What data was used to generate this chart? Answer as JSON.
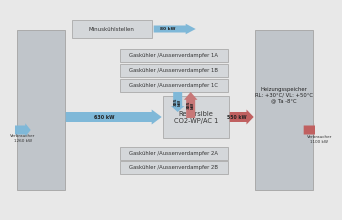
{
  "bg_color": "#e8e8e8",
  "panel_gray": "#c0c5ca",
  "box_gray": "#d4d7da",
  "box_edge": "#aaaaaa",
  "blue_arrow": "#7fb8d8",
  "red_arrow": "#c06060",
  "pink_arrow": "#c87878",
  "boxes_1A": "Gaskühler /Aussenverdampfer 1A",
  "boxes_1B": "Gaskühler /Aussenverdampfer 1B",
  "boxes_1C": "Gaskühler /Aussenverdampfer 1C",
  "boxes_2A": "Gaskühler /Aussenverdampfer 2A",
  "boxes_2B": "Gaskühler /Aussenverdampfer 2B",
  "center_box": "Reversible\nCO2-WP/AC 1",
  "top_box": "Minuskühlstellen",
  "right_label": "Heizungsspeicher\nRL: +30°C/ VL: +50°C\n@ Ta -8°C",
  "verbraucher_left": "Verbraucher\n1260 kW",
  "verbraucher_right": "Verbraucher\n1100 kW",
  "arrow_top_kw": "80 kW",
  "arrow_left_kw": "630 kW",
  "arrow_right_kw": "550 kW",
  "arrow_down_kw": "385\nkW",
  "arrow_up_kw": "385\nkW"
}
